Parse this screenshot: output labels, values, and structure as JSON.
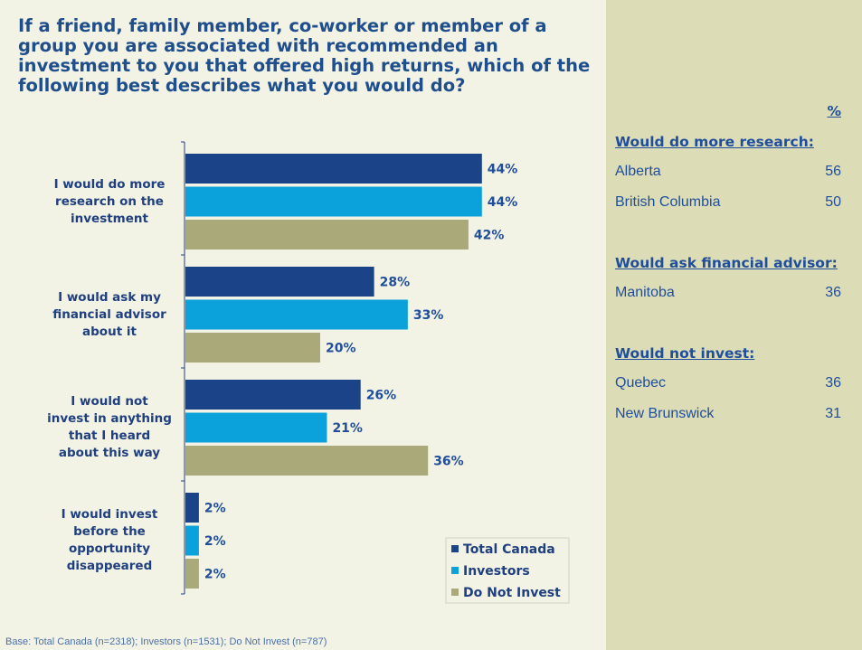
{
  "chart_data": {
    "type": "bar",
    "orientation": "horizontal",
    "title": "If a friend, family member, co-worker or member of a group you are associated with recommended an investment to you that offered high returns, which of the following best describes what you would do?",
    "categories": [
      "I would do more\nresearch on the\ninvestment",
      "I would ask my\nfinancial advisor\nabout it",
      "I would not\ninvest in anything\nthat I heard\nabout this way",
      "I would invest\nbefore the\nopportunity\ndisappeared"
    ],
    "series": [
      {
        "name": "Total Canada",
        "color": "#1b4388",
        "values": [
          44,
          28,
          26,
          2
        ],
        "value_labels": [
          "44%",
          "28%",
          "26%",
          "2%"
        ]
      },
      {
        "name": "Investors",
        "color": "#0ba2dc",
        "values": [
          44,
          33,
          21,
          2
        ],
        "value_labels": [
          "44%",
          "33%",
          "21%",
          "2%"
        ]
      },
      {
        "name": "Do Not Invest",
        "color": "#a9a97a",
        "values": [
          42,
          20,
          36,
          2
        ],
        "value_labels": [
          "42%",
          "20%",
          "36%",
          "2%"
        ]
      }
    ],
    "legend": "lower right",
    "footnote": "Base: Total Canada (n=2318); Investors (n=1531); Do Not Invest (n=787)"
  },
  "side_panel": {
    "header": "%",
    "sections": [
      {
        "heading": "Would do more research:",
        "rows": [
          {
            "label": "Alberta",
            "value": "56"
          },
          {
            "label": "British Columbia",
            "value": "50"
          }
        ]
      },
      {
        "heading": "Would ask financial advisor:",
        "rows": [
          {
            "label": "Manitoba",
            "value": "36"
          }
        ]
      },
      {
        "heading": "Would not invest:",
        "rows": [
          {
            "label": "Quebec",
            "value": "36"
          },
          {
            "label": "New Brunswick",
            "value": "31"
          }
        ]
      }
    ]
  }
}
